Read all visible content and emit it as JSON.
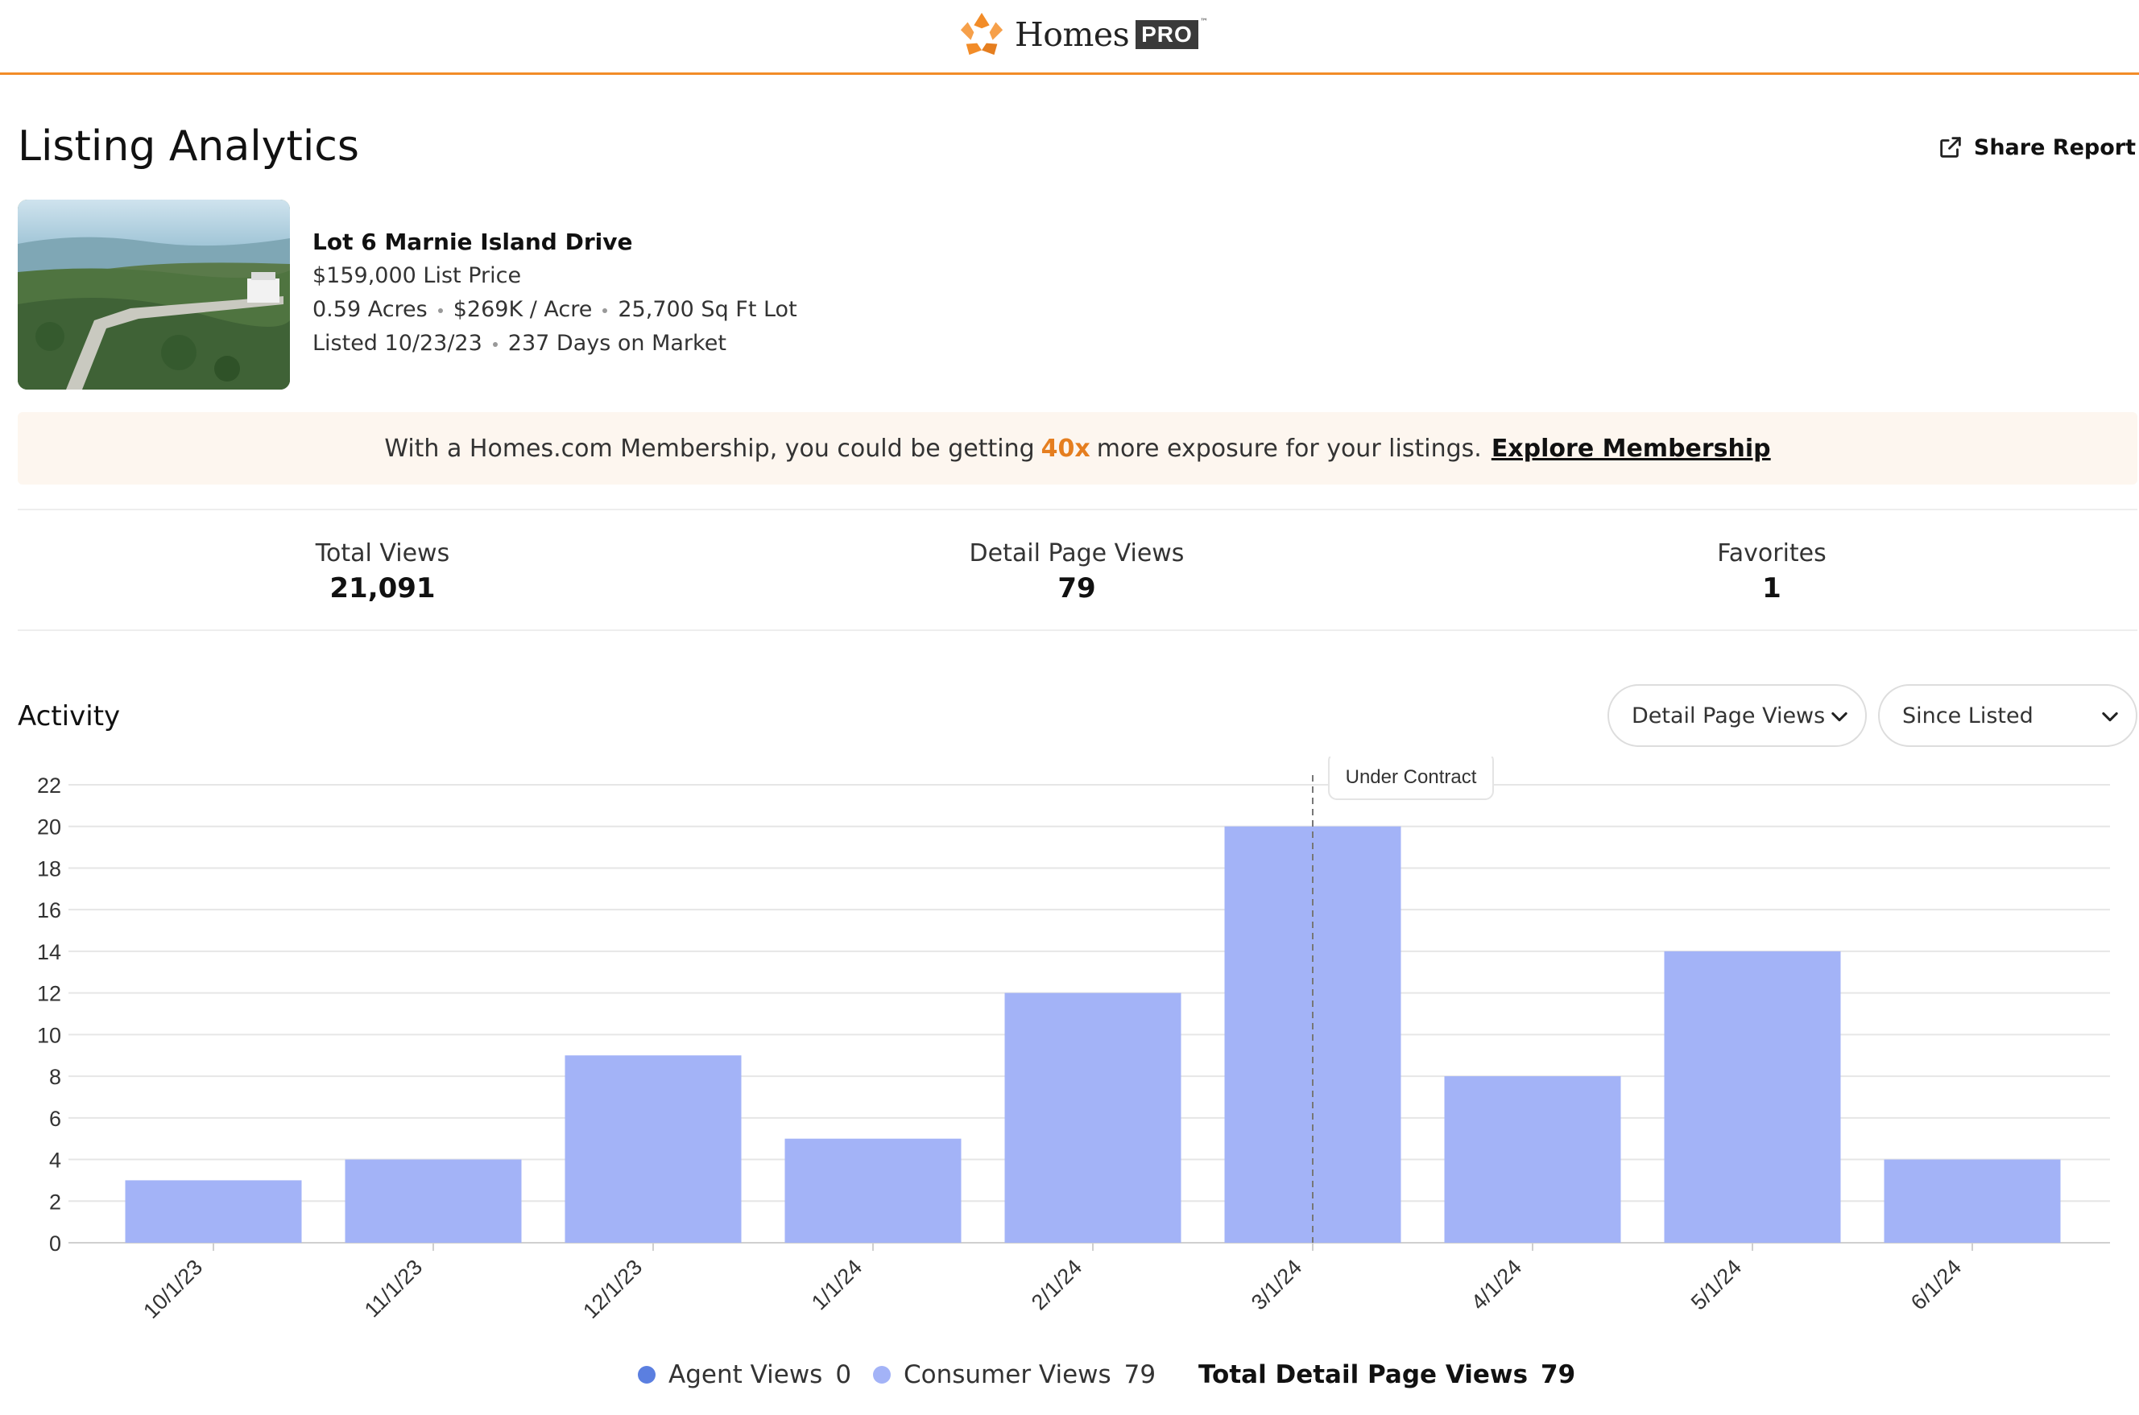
{
  "header": {
    "brand": "Homes",
    "brand_badge": "PRO",
    "brand_tm": "™"
  },
  "page": {
    "title": "Listing Analytics",
    "share_label": "Share Report"
  },
  "listing": {
    "address": "Lot 6 Marnie Island Drive",
    "price_line": "$159,000 List Price",
    "acres": "0.59 Acres",
    "price_per_acre": "$269K / Acre",
    "lot_size": "25,700 Sq Ft Lot",
    "listed": "Listed 10/23/23",
    "days_on_market": "237 Days on Market"
  },
  "banner": {
    "text_before": "With a Homes.com Membership, you could be getting",
    "highlight": "40x",
    "text_after": "more exposure for your listings.",
    "link": "Explore Membership"
  },
  "stats": [
    {
      "label": "Total Views",
      "value": "21,091"
    },
    {
      "label": "Detail Page Views",
      "value": "79"
    },
    {
      "label": "Favorites",
      "value": "1"
    }
  ],
  "activity": {
    "title": "Activity",
    "metric_select": "Detail Page Views",
    "range_select": "Since Listed"
  },
  "chart_data": {
    "type": "bar",
    "categories": [
      "10/1/23",
      "11/1/23",
      "12/1/23",
      "1/1/24",
      "2/1/24",
      "3/1/24",
      "4/1/24",
      "5/1/24",
      "6/1/24"
    ],
    "series": [
      {
        "name": "Consumer Views",
        "values": [
          3,
          4,
          9,
          5,
          12,
          20,
          8,
          14,
          4
        ]
      },
      {
        "name": "Agent Views",
        "values": [
          0,
          0,
          0,
          0,
          0,
          0,
          0,
          0,
          0
        ]
      }
    ],
    "yticks": [
      0,
      2,
      4,
      6,
      8,
      10,
      12,
      14,
      16,
      18,
      20,
      22
    ],
    "ylim": [
      0,
      22
    ],
    "grid": true,
    "annotation": {
      "label": "Under Contract",
      "category": "3/1/24"
    },
    "colors": {
      "consumer": "#a3b3f7",
      "agent": "#5b7fe0"
    }
  },
  "legend": {
    "agent_label": "Agent Views",
    "agent_value": "0",
    "consumer_label": "Consumer Views",
    "consumer_value": "79",
    "total_label": "Total Detail Page Views",
    "total_value": "79"
  },
  "colors": {
    "accent": "#f28c28",
    "banner_bg": "#fdf6ef",
    "bar": "#a3b3f7",
    "agent": "#5b7fe0"
  }
}
